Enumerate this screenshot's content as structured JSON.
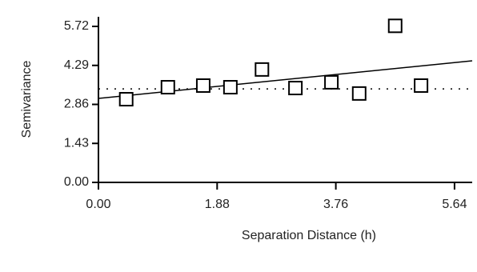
{
  "chart_data": {
    "type": "scatter",
    "x_label": "Separation Distance (h)",
    "y_label": "Semivariance",
    "x": [
      0.44,
      1.1,
      1.66,
      2.09,
      2.59,
      3.12,
      3.69,
      4.13,
      4.7,
      5.11
    ],
    "values": [
      3.05,
      3.49,
      3.55,
      3.49,
      4.14,
      3.46,
      3.67,
      3.26,
      5.74,
      3.55
    ],
    "color": "#000000",
    "trend": {
      "x": [
        0,
        5.92
      ],
      "y": [
        3.08,
        4.46
      ]
    },
    "sill": 3.43,
    "xlim": [
      0,
      5.92
    ],
    "ylim": [
      0,
      5.72
    ],
    "xticks": [
      {
        "value": 0,
        "label": "0.00"
      },
      1.88,
      3.76,
      5.64
    ],
    "yticks": [
      {
        "value": 0,
        "label": "0.00"
      },
      1.43,
      2.86,
      4.29,
      5.72
    ]
  }
}
